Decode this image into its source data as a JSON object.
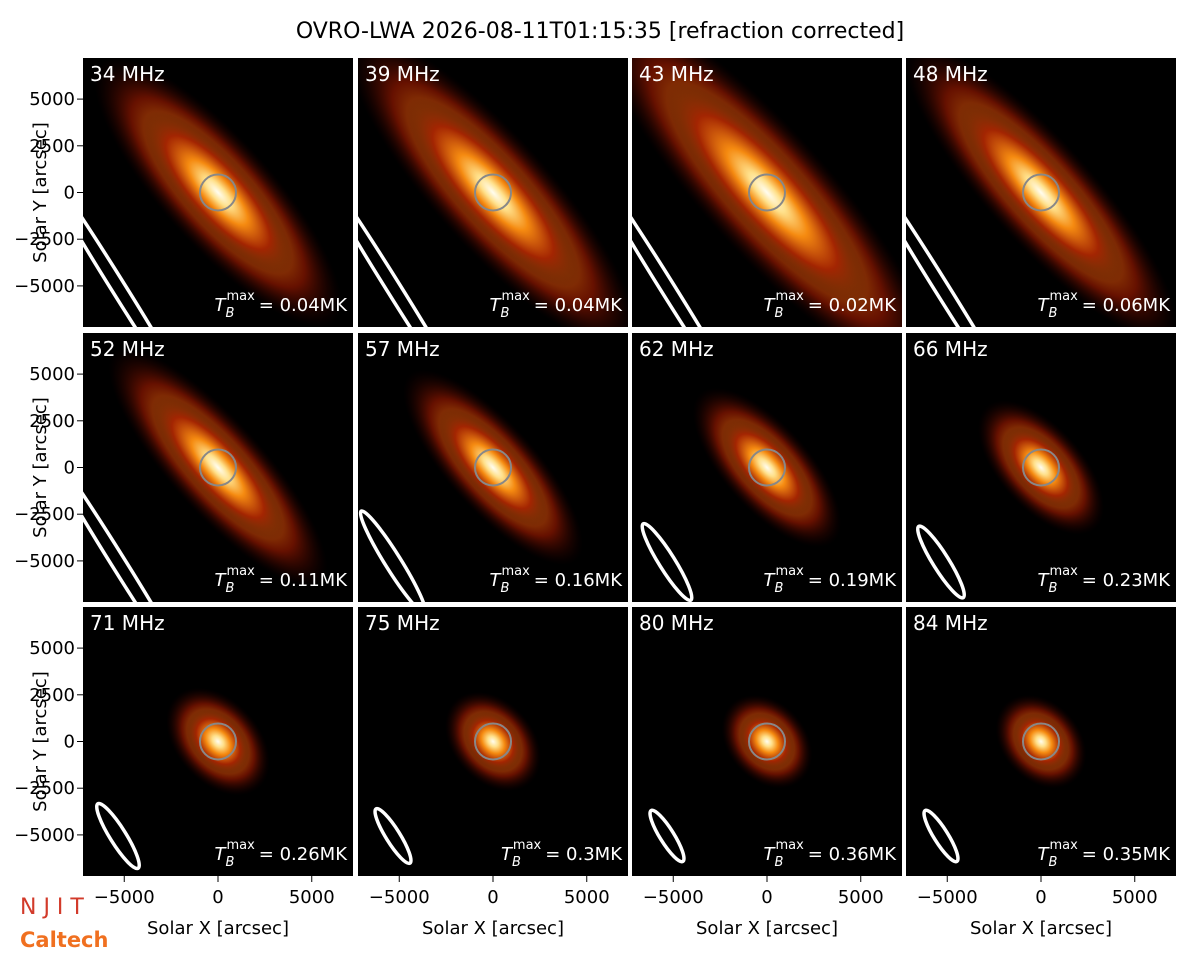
{
  "title": "OVRO-LWA 2026-08-11T01:15:35 [refraction corrected]",
  "axes": {
    "xlabel": "Solar X [arcsec]",
    "ylabel": "Solar Y [arcsec]",
    "xlim": [
      -7200,
      7200
    ],
    "ylim": [
      -7200,
      7200
    ],
    "xticks": [
      {
        "value": -5000,
        "label": "−5000"
      },
      0,
      5000
    ],
    "yticks": [
      {
        "value": -5000,
        "label": "−5000"
      },
      {
        "value": -2500,
        "label": "−2500"
      },
      0,
      2500,
      5000
    ]
  },
  "chart_data": [
    {
      "type": "image",
      "label": "34 MHz",
      "annotation": {
        "symbol": "T",
        "subscript": "B",
        "superscript": "max",
        "value": "= 0.04MK"
      }
    },
    {
      "type": "image",
      "label": "39 MHz",
      "annotation": {
        "symbol": "T",
        "subscript": "B",
        "superscript": "max",
        "value": "= 0.04MK"
      }
    },
    {
      "type": "image",
      "label": "43 MHz",
      "annotation": {
        "symbol": "T",
        "subscript": "B",
        "superscript": "max",
        "value": "= 0.02MK"
      }
    },
    {
      "type": "image",
      "label": "48 MHz",
      "annotation": {
        "symbol": "T",
        "subscript": "B",
        "superscript": "max",
        "value": "= 0.06MK"
      }
    },
    {
      "type": "image",
      "label": "52 MHz",
      "annotation": {
        "symbol": "T",
        "subscript": "B",
        "superscript": "max",
        "value": "= 0.11MK"
      }
    },
    {
      "type": "image",
      "label": "57 MHz",
      "annotation": {
        "symbol": "T",
        "subscript": "B",
        "superscript": "max",
        "value": "= 0.16MK"
      }
    },
    {
      "type": "image",
      "label": "62 MHz",
      "annotation": {
        "symbol": "T",
        "subscript": "B",
        "superscript": "max",
        "value": "= 0.19MK"
      }
    },
    {
      "type": "image",
      "label": "66 MHz",
      "annotation": {
        "symbol": "T",
        "subscript": "B",
        "superscript": "max",
        "value": "= 0.23MK"
      }
    },
    {
      "type": "image",
      "label": "71 MHz",
      "annotation": {
        "symbol": "T",
        "subscript": "B",
        "superscript": "max",
        "value": "= 0.26MK"
      }
    },
    {
      "type": "image",
      "label": "75 MHz",
      "annotation": {
        "symbol": "T",
        "subscript": "B",
        "superscript": "max",
        "value": "= 0.3MK"
      }
    },
    {
      "type": "image",
      "label": "80 MHz",
      "annotation": {
        "symbol": "T",
        "subscript": "B",
        "superscript": "max",
        "value": "= 0.36MK"
      }
    },
    {
      "type": "image",
      "label": "84 MHz",
      "annotation": {
        "symbol": "T",
        "subscript": "B",
        "superscript": "max",
        "value": "= 0.35MK"
      }
    }
  ],
  "logos": [
    "N J I T",
    "Caltech"
  ]
}
